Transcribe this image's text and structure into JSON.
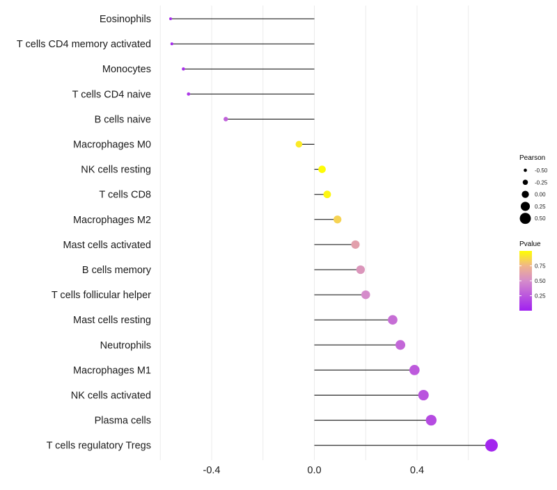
{
  "chart_data": {
    "type": "lollipop",
    "title": "",
    "xlabel": "",
    "ylabel": "",
    "xlim": [
      -0.6,
      0.72
    ],
    "x_ticks": [
      -0.4,
      0.0,
      0.4
    ],
    "x_tick_labels": [
      "-0.4",
      "0.0",
      "0.4"
    ],
    "grid": true,
    "colors": {
      "low": "#a020f0",
      "high": "#ffff00",
      "stem": "#000000",
      "grid": "#ebebeb"
    },
    "categories": [
      "Eosinophils",
      "T cells CD4 memory activated",
      "Monocytes",
      "T cells CD4 naive",
      "B cells naive",
      "Macrophages M0",
      "NK cells resting",
      "T cells CD8",
      "Macrophages M2",
      "Mast cells activated",
      "B cells memory",
      "T cells follicular helper",
      "Mast cells resting",
      "Neutrophils",
      "Macrophages M1",
      "NK cells activated",
      "Plasma cells",
      "T cells regulatory  Tregs"
    ],
    "pearson": [
      -0.56,
      -0.555,
      -0.51,
      -0.49,
      -0.345,
      -0.06,
      0.03,
      0.05,
      0.09,
      0.16,
      0.18,
      0.2,
      0.305,
      0.335,
      0.39,
      0.425,
      0.455,
      0.69
    ],
    "pvalue": [
      0.05,
      0.05,
      0.08,
      0.12,
      0.3,
      0.93,
      0.99,
      0.97,
      0.85,
      0.62,
      0.56,
      0.5,
      0.36,
      0.33,
      0.27,
      0.24,
      0.2,
      0.03
    ],
    "legend_size": {
      "title": "Pearson",
      "labels": [
        "-0.50",
        "-0.25",
        "0.00",
        "0.25",
        "0.50"
      ],
      "values": [
        -0.5,
        -0.25,
        0.0,
        0.25,
        0.5
      ]
    },
    "legend_color": {
      "title": "Pvalue",
      "labels": [
        "0.75",
        "0.50",
        "0.25"
      ],
      "values": [
        0.75,
        0.5,
        0.25
      ],
      "range": [
        0.0,
        1.0
      ]
    }
  }
}
